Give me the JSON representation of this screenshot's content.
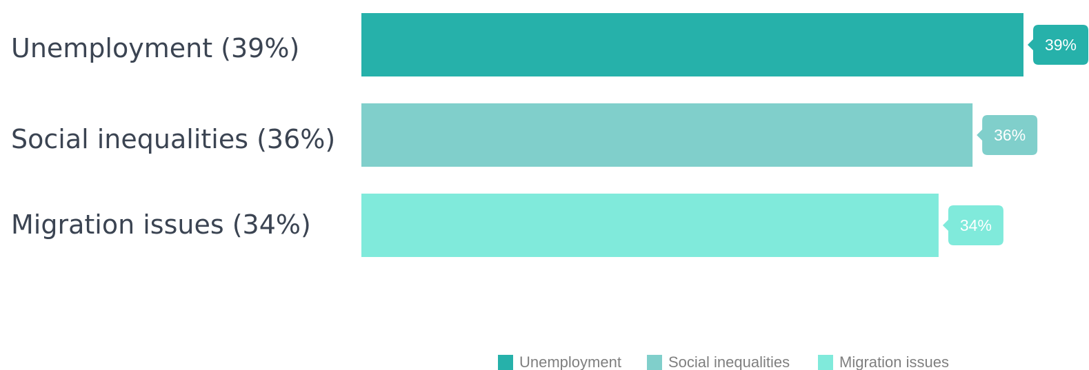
{
  "chart_data": {
    "type": "bar",
    "orientation": "horizontal",
    "categories": [
      "Unemployment (39%)",
      "Social inequalities (36%)",
      "Migration issues (34%)"
    ],
    "values": [
      39,
      36,
      34
    ],
    "data_labels": [
      "39%",
      "36%",
      "34%"
    ],
    "colors": [
      "#26b1aa",
      "#80cfcb",
      "#80eadb"
    ],
    "xlim": [
      0,
      39
    ],
    "grid": false,
    "legend": {
      "placement": "bottom",
      "entries": [
        "Unemployment",
        "Social inequalities",
        "Migration issues"
      ]
    }
  }
}
